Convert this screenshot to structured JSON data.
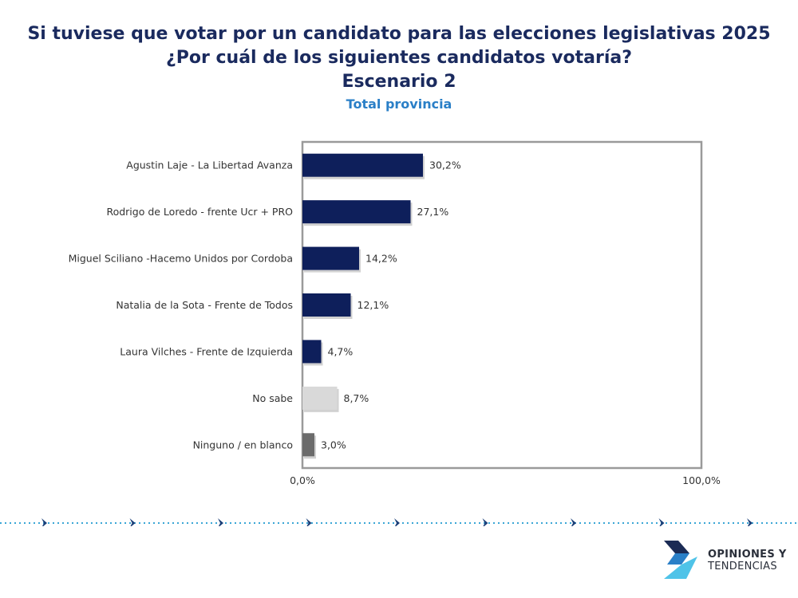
{
  "header": {
    "line1": "Si tuviese que votar por un candidato para las elecciones legislativas 2025",
    "line2": "¿Por cuál de los siguientes candidatos votaría?",
    "line3": "Escenario 2",
    "subtitle": "Total provincia"
  },
  "chart_data": {
    "type": "bar",
    "orientation": "horizontal",
    "categories": [
      "Agustin Laje - La Libertad Avanza",
      "Rodrigo de Loredo - frente Ucr + PRO",
      "Miguel Sciliano -Hacemo Unidos por Cordoba",
      "Natalia de la Sota - Frente de Todos",
      "Laura Vilches - Frente de Izquierda",
      "No sabe",
      "Ninguno / en blanco"
    ],
    "values": [
      30.2,
      27.1,
      14.2,
      12.1,
      4.7,
      8.7,
      3.0
    ],
    "value_labels": [
      "30,2%",
      "27,1%",
      "14,2%",
      "12,1%",
      "4,7%",
      "8,7%",
      "3,0%"
    ],
    "colors": [
      "#0e1f5b",
      "#0e1f5b",
      "#0e1f5b",
      "#0e1f5b",
      "#0e1f5b",
      "#d9d9d9",
      "#6b6b6b"
    ],
    "xlim": [
      0,
      100
    ],
    "x_tick_labels": [
      "0,0%",
      "100,0%"
    ],
    "grid": false,
    "legend": "none"
  },
  "footer": {
    "logo_line1": "OPINIONES Y",
    "logo_line2": "TENDENCIAS",
    "dotted_line_color": "#3aa6d6",
    "logo_colors": [
      "#1b2b55",
      "#2a7fc7",
      "#4fc3e8"
    ]
  }
}
